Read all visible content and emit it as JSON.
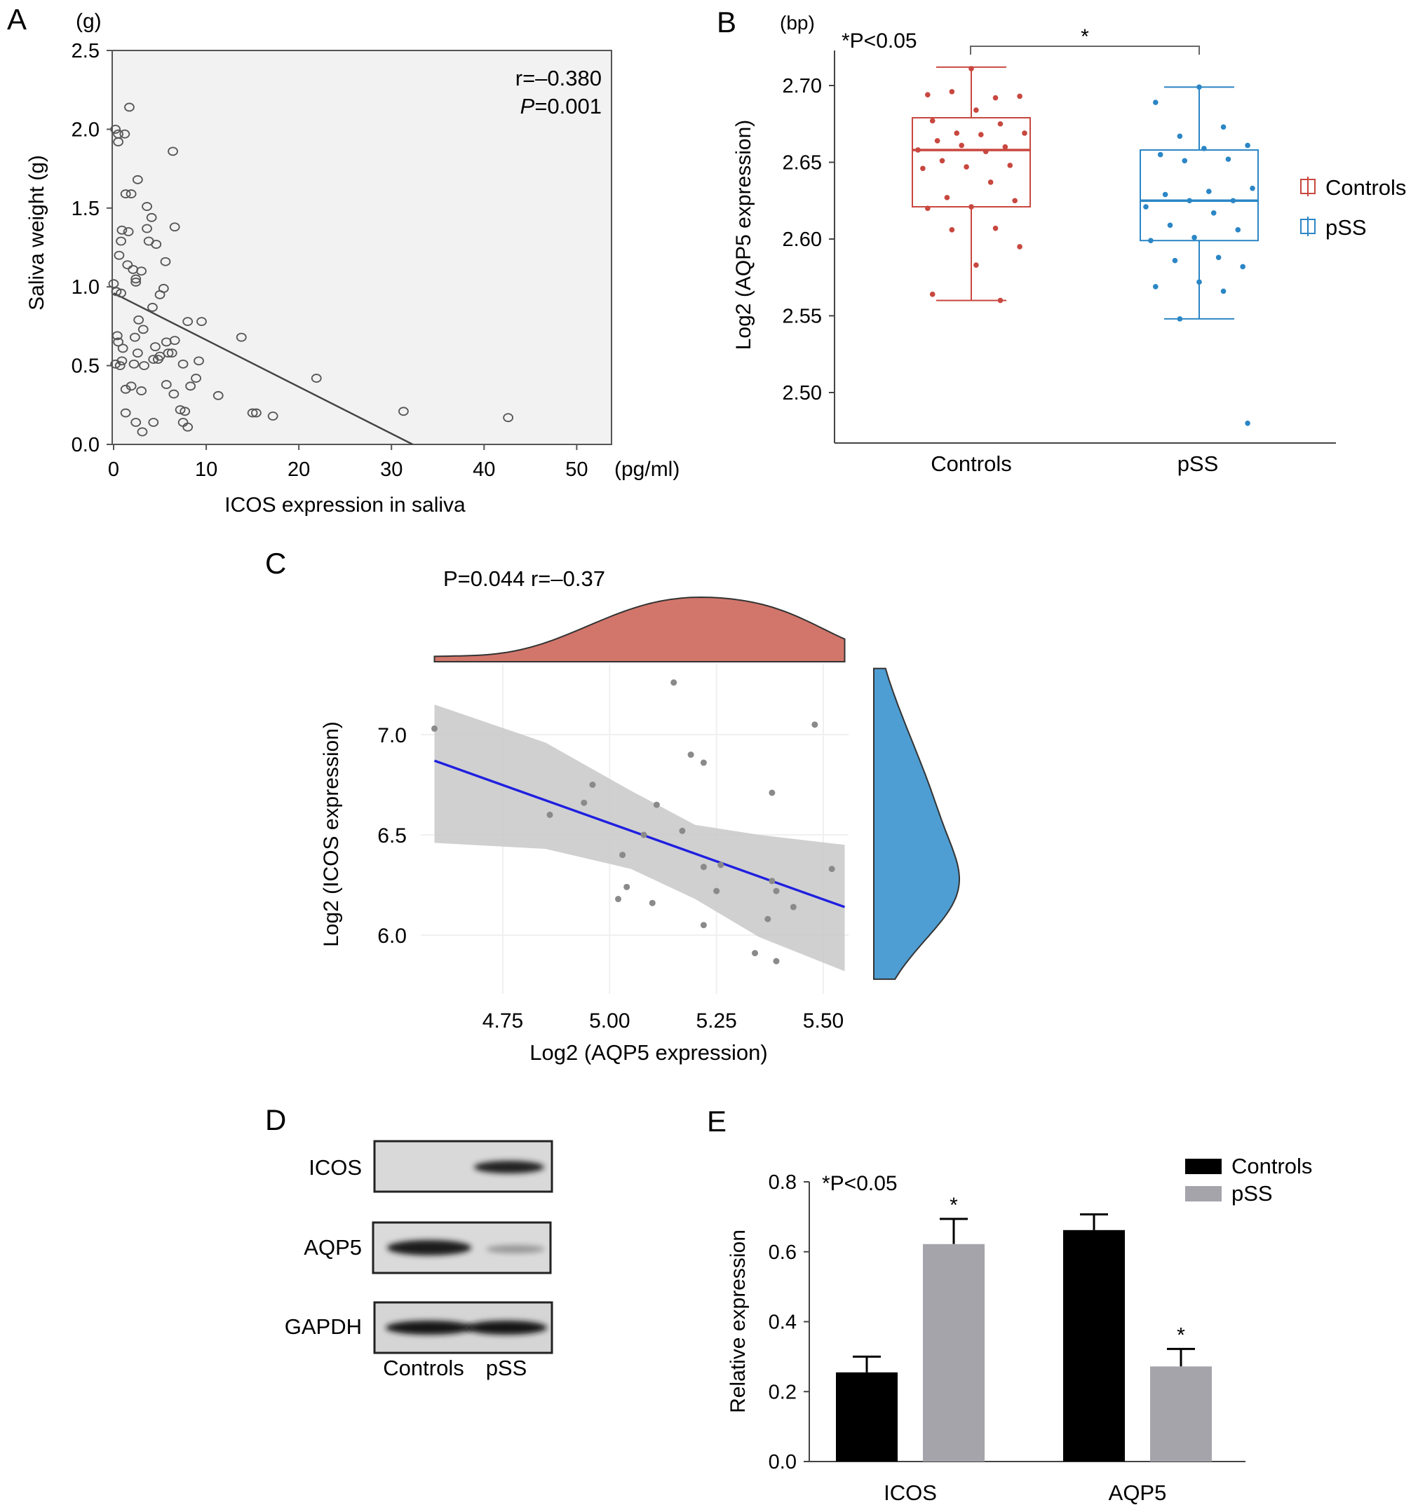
{
  "chart_data": [
    {
      "panel": "A",
      "type": "scatter",
      "panel_label": "A",
      "unit_y": "(g)",
      "unit_x": "(pg/ml)",
      "xlabel": "ICOS expression in saliva",
      "ylabel": "Saliva weight (g)",
      "xlim": [
        0,
        53
      ],
      "ylim": [
        0,
        2.5
      ],
      "xticks": [
        "0",
        "10",
        "20",
        "30",
        "40",
        "50"
      ],
      "yticks": [
        "0.0",
        "0.5",
        "1.0",
        "1.5",
        "2.0",
        "2.5"
      ],
      "annotation_r": "r=–0.380",
      "annotation_p_italic": "P",
      "annotation_p_value": "=0.001",
      "fit_line": {
        "x0": 0,
        "y0": 0.96,
        "x1": 32.3,
        "y1": 0
      },
      "points": [
        [
          0.2,
          2.0
        ],
        [
          0.5,
          1.97
        ],
        [
          0.5,
          1.92
        ],
        [
          1.2,
          1.97
        ],
        [
          1.7,
          2.14
        ],
        [
          6.4,
          1.86
        ],
        [
          2.6,
          1.68
        ],
        [
          1.3,
          1.59
        ],
        [
          1.9,
          1.59
        ],
        [
          3.6,
          1.51
        ],
        [
          4.1,
          1.44
        ],
        [
          3.6,
          1.37
        ],
        [
          0.9,
          1.36
        ],
        [
          1.6,
          1.35
        ],
        [
          6.6,
          1.38
        ],
        [
          3.8,
          1.29
        ],
        [
          0.8,
          1.29
        ],
        [
          4.6,
          1.27
        ],
        [
          0.6,
          1.2
        ],
        [
          5.6,
          1.16
        ],
        [
          1.5,
          1.14
        ],
        [
          2.1,
          1.11
        ],
        [
          3.0,
          1.1
        ],
        [
          2.4,
          1.05
        ],
        [
          2.4,
          1.03
        ],
        [
          5.4,
          0.99
        ],
        [
          0.0,
          1.02
        ],
        [
          0.3,
          0.97
        ],
        [
          5.0,
          0.95
        ],
        [
          0.8,
          0.96
        ],
        [
          4.2,
          0.87
        ],
        [
          2.7,
          0.79
        ],
        [
          8.0,
          0.78
        ],
        [
          9.5,
          0.78
        ],
        [
          3.2,
          0.73
        ],
        [
          2.3,
          0.68
        ],
        [
          0.4,
          0.69
        ],
        [
          13.8,
          0.68
        ],
        [
          0.5,
          0.65
        ],
        [
          1.0,
          0.61
        ],
        [
          4.5,
          0.62
        ],
        [
          5.7,
          0.65
        ],
        [
          6.6,
          0.66
        ],
        [
          2.6,
          0.58
        ],
        [
          5.0,
          0.56
        ],
        [
          5.9,
          0.58
        ],
        [
          6.3,
          0.58
        ],
        [
          0.9,
          0.53
        ],
        [
          0.2,
          0.51
        ],
        [
          4.3,
          0.54
        ],
        [
          4.8,
          0.54
        ],
        [
          7.5,
          0.51
        ],
        [
          2.2,
          0.51
        ],
        [
          9.2,
          0.53
        ],
        [
          3.3,
          0.5
        ],
        [
          0.7,
          0.5
        ],
        [
          5.7,
          0.38
        ],
        [
          8.9,
          0.42
        ],
        [
          8.3,
          0.37
        ],
        [
          1.3,
          0.35
        ],
        [
          1.9,
          0.37
        ],
        [
          3.0,
          0.34
        ],
        [
          6.5,
          0.32
        ],
        [
          11.3,
          0.31
        ],
        [
          21.9,
          0.42
        ],
        [
          7.2,
          0.22
        ],
        [
          7.7,
          0.21
        ],
        [
          1.3,
          0.2
        ],
        [
          15.0,
          0.2
        ],
        [
          15.4,
          0.2
        ],
        [
          17.2,
          0.18
        ],
        [
          31.3,
          0.21
        ],
        [
          42.6,
          0.17
        ],
        [
          7.5,
          0.14
        ],
        [
          8.0,
          0.11
        ],
        [
          2.4,
          0.14
        ],
        [
          4.3,
          0.14
        ],
        [
          3.1,
          0.08
        ]
      ]
    },
    {
      "panel": "B",
      "type": "box",
      "panel_label": "B",
      "unit_y": "(bp)",
      "sig_note": "*P<0.05",
      "sig_star": "*",
      "ylabel": "Log2 (AQP5 expression)",
      "ylim": [
        2.47,
        2.73
      ],
      "yticks": [
        "2.50",
        "2.55",
        "2.60",
        "2.65",
        "2.70"
      ],
      "categories": [
        "Controls",
        "pSS"
      ],
      "legend": [
        "Controls",
        "pSS"
      ],
      "colors": {
        "Controls": "#c8473f",
        "pSS": "#2b86c5"
      },
      "series": [
        {
          "name": "Controls",
          "min": 2.56,
          "q1": 2.621,
          "median": 2.658,
          "q3": 2.679,
          "max": 2.712,
          "points": [
            2.711,
            2.694,
            2.692,
            2.696,
            2.693,
            2.684,
            2.677,
            2.675,
            2.669,
            2.669,
            2.668,
            2.664,
            2.66,
            2.661,
            2.658,
            2.657,
            2.651,
            2.648,
            2.647,
            2.646,
            2.637,
            2.627,
            2.625,
            2.621,
            2.62,
            2.607,
            2.606,
            2.595,
            2.583,
            2.564,
            2.56
          ]
        },
        {
          "name": "pSS",
          "min": 2.548,
          "q1": 2.599,
          "median": 2.625,
          "q3": 2.658,
          "max": 2.699,
          "points": [
            2.699,
            2.689,
            2.673,
            2.667,
            2.661,
            2.659,
            2.655,
            2.652,
            2.651,
            2.633,
            2.631,
            2.629,
            2.625,
            2.625,
            2.621,
            2.617,
            2.609,
            2.606,
            2.601,
            2.599,
            2.588,
            2.586,
            2.582,
            2.572,
            2.569,
            2.566,
            2.548,
            2.48
          ]
        }
      ]
    },
    {
      "panel": "C",
      "type": "scatter",
      "panel_label": "C",
      "stats": "P=0.044  r=–0.37",
      "xlabel": "Log2 (AQP5 expression)",
      "ylabel": "Log2 (ICOS expression)",
      "xlim": [
        4.59,
        5.55
      ],
      "ylim": [
        5.8,
        7.3
      ],
      "xticks": [
        "4.75",
        "5.00",
        "5.25",
        "5.50"
      ],
      "yticks": [
        "6.0",
        "6.5",
        "7.0"
      ],
      "fit_line": {
        "x0": 4.59,
        "y0": 6.87,
        "x1": 5.55,
        "y1": 6.14
      },
      "band_upper": [
        [
          4.59,
          7.15
        ],
        [
          4.85,
          6.96
        ],
        [
          5.05,
          6.72
        ],
        [
          5.2,
          6.55
        ],
        [
          5.35,
          6.5
        ],
        [
          5.55,
          6.45
        ]
      ],
      "band_lower": [
        [
          4.59,
          6.46
        ],
        [
          4.85,
          6.43
        ],
        [
          5.05,
          6.33
        ],
        [
          5.2,
          6.18
        ],
        [
          5.35,
          5.99
        ],
        [
          5.55,
          5.82
        ]
      ],
      "points": [
        [
          4.59,
          7.03
        ],
        [
          4.86,
          6.6
        ],
        [
          4.94,
          6.66
        ],
        [
          4.96,
          6.75
        ],
        [
          5.03,
          6.4
        ],
        [
          5.04,
          6.24
        ],
        [
          5.02,
          6.18
        ],
        [
          5.08,
          6.5
        ],
        [
          5.1,
          6.16
        ],
        [
          5.11,
          6.65
        ],
        [
          5.15,
          7.26
        ],
        [
          5.17,
          6.52
        ],
        [
          5.19,
          6.9
        ],
        [
          5.22,
          6.86
        ],
        [
          5.22,
          6.05
        ],
        [
          5.22,
          6.34
        ],
        [
          5.25,
          6.22
        ],
        [
          5.26,
          6.35
        ],
        [
          5.34,
          5.91
        ],
        [
          5.37,
          6.08
        ],
        [
          5.38,
          6.27
        ],
        [
          5.39,
          6.22
        ],
        [
          5.38,
          6.71
        ],
        [
          5.39,
          5.87
        ],
        [
          5.43,
          6.14
        ],
        [
          5.48,
          7.05
        ],
        [
          5.52,
          6.33
        ]
      ],
      "colors": {
        "fit": "#1f1fe0",
        "points": "#8a8a8a",
        "band": "#c8c8c8",
        "top_density": "#d2766b",
        "right_density": "#4e9ed3"
      }
    },
    {
      "panel": "E",
      "type": "bar",
      "panel_label": "E",
      "sig_note": "*P<0.05",
      "ylabel": "Relative expression",
      "ylim": [
        0,
        0.8
      ],
      "yticks": [
        "0.0",
        "0.2",
        "0.4",
        "0.6",
        "0.8"
      ],
      "categories": [
        "ICOS",
        "AQP5"
      ],
      "series": [
        {
          "name": "Controls",
          "values": [
            0.255,
            0.662
          ],
          "errors": [
            0.045,
            0.045
          ],
          "color": "#000000"
        },
        {
          "name": "pSS",
          "values": [
            0.622,
            0.272
          ],
          "errors": [
            0.072,
            0.05
          ],
          "color": "#a5a4ab"
        }
      ],
      "significance": [
        {
          "series": "pSS",
          "category": "ICOS",
          "mark": "*"
        },
        {
          "series": "pSS",
          "category": "AQP5",
          "mark": "*"
        }
      ]
    }
  ],
  "western_blot": {
    "panel_label": "D",
    "rows": [
      "ICOS",
      "AQP5",
      "GAPDH"
    ],
    "lanes": [
      "Controls",
      "pSS"
    ],
    "band_intensity": {
      "ICOS": [
        0.05,
        0.9
      ],
      "AQP5": [
        0.9,
        0.25
      ],
      "GAPDH": [
        0.95,
        0.95
      ]
    }
  }
}
